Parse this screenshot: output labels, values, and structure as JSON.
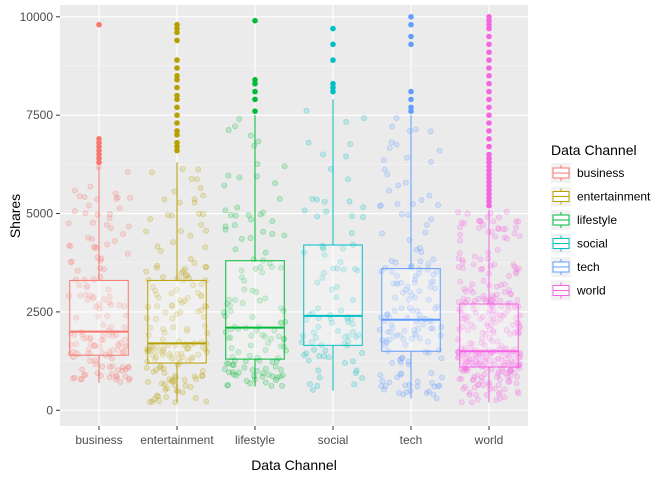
{
  "chart_data": {
    "type": "boxplot-jitter",
    "xlabel": "Data Channel",
    "ylabel": "Shares",
    "ylim": [
      -400,
      10300
    ],
    "y_ticks": [
      0,
      2500,
      5000,
      7500,
      10000
    ],
    "y_tick_labels": [
      "0",
      "2500",
      "5000",
      "7500",
      "10000"
    ],
    "categories": [
      "business",
      "entertainment",
      "lifestyle",
      "social",
      "tech",
      "world"
    ],
    "colors": [
      "#F8766D",
      "#B79F00",
      "#00BA38",
      "#00BFC4",
      "#619CFF",
      "#F564E3"
    ],
    "boxes": [
      {
        "q1": 1400,
        "median": 2000,
        "q3": 3300,
        "whisker_low": 700,
        "whisker_high": 6200
      },
      {
        "q1": 1200,
        "median": 1700,
        "q3": 3300,
        "whisker_low": 200,
        "whisker_high": 6300
      },
      {
        "q1": 1300,
        "median": 2100,
        "q3": 3800,
        "whisker_low": 600,
        "whisker_high": 7500
      },
      {
        "q1": 1650,
        "median": 2400,
        "q3": 4200,
        "whisker_low": 500,
        "whisker_high": 7900
      },
      {
        "q1": 1500,
        "median": 2300,
        "q3": 3600,
        "whisker_low": 300,
        "whisker_high": 7500
      },
      {
        "q1": 1100,
        "median": 1500,
        "q3": 2700,
        "whisker_low": 200,
        "whisker_high": 5100
      }
    ],
    "outliers": [
      [
        6300,
        6400,
        6500,
        6600,
        6700,
        6800,
        6900,
        9800
      ],
      [
        6600,
        6700,
        6800,
        7000,
        7100,
        7300,
        7500,
        7700,
        7900,
        8000,
        8200,
        8400,
        8500,
        8700,
        8900,
        9400,
        9600,
        9700,
        9800
      ],
      [
        7600,
        7900,
        8100,
        8300,
        8400,
        9900
      ],
      [
        8100,
        8200,
        8300,
        8900,
        9300,
        9700
      ],
      [
        7600,
        7700,
        7900,
        8100,
        9300,
        9500,
        9800,
        10000
      ],
      [
        5200,
        5300,
        5400,
        5500,
        5600,
        5700,
        5800,
        5900,
        6000,
        6100,
        6200,
        6300,
        6400,
        6500,
        6700,
        6900,
        7100,
        7300,
        7500,
        7700,
        7900,
        8100,
        8300,
        8500,
        8700,
        8900,
        9100,
        9300,
        9500,
        9700,
        9800,
        9900,
        10000
      ]
    ],
    "jitter_counts": [
      150,
      170,
      130,
      90,
      160,
      320
    ],
    "legend": {
      "title": "Data Channel",
      "position": "right",
      "entries": [
        "business",
        "entertainment",
        "lifestyle",
        "social",
        "tech",
        "world"
      ]
    },
    "grid": true
  }
}
